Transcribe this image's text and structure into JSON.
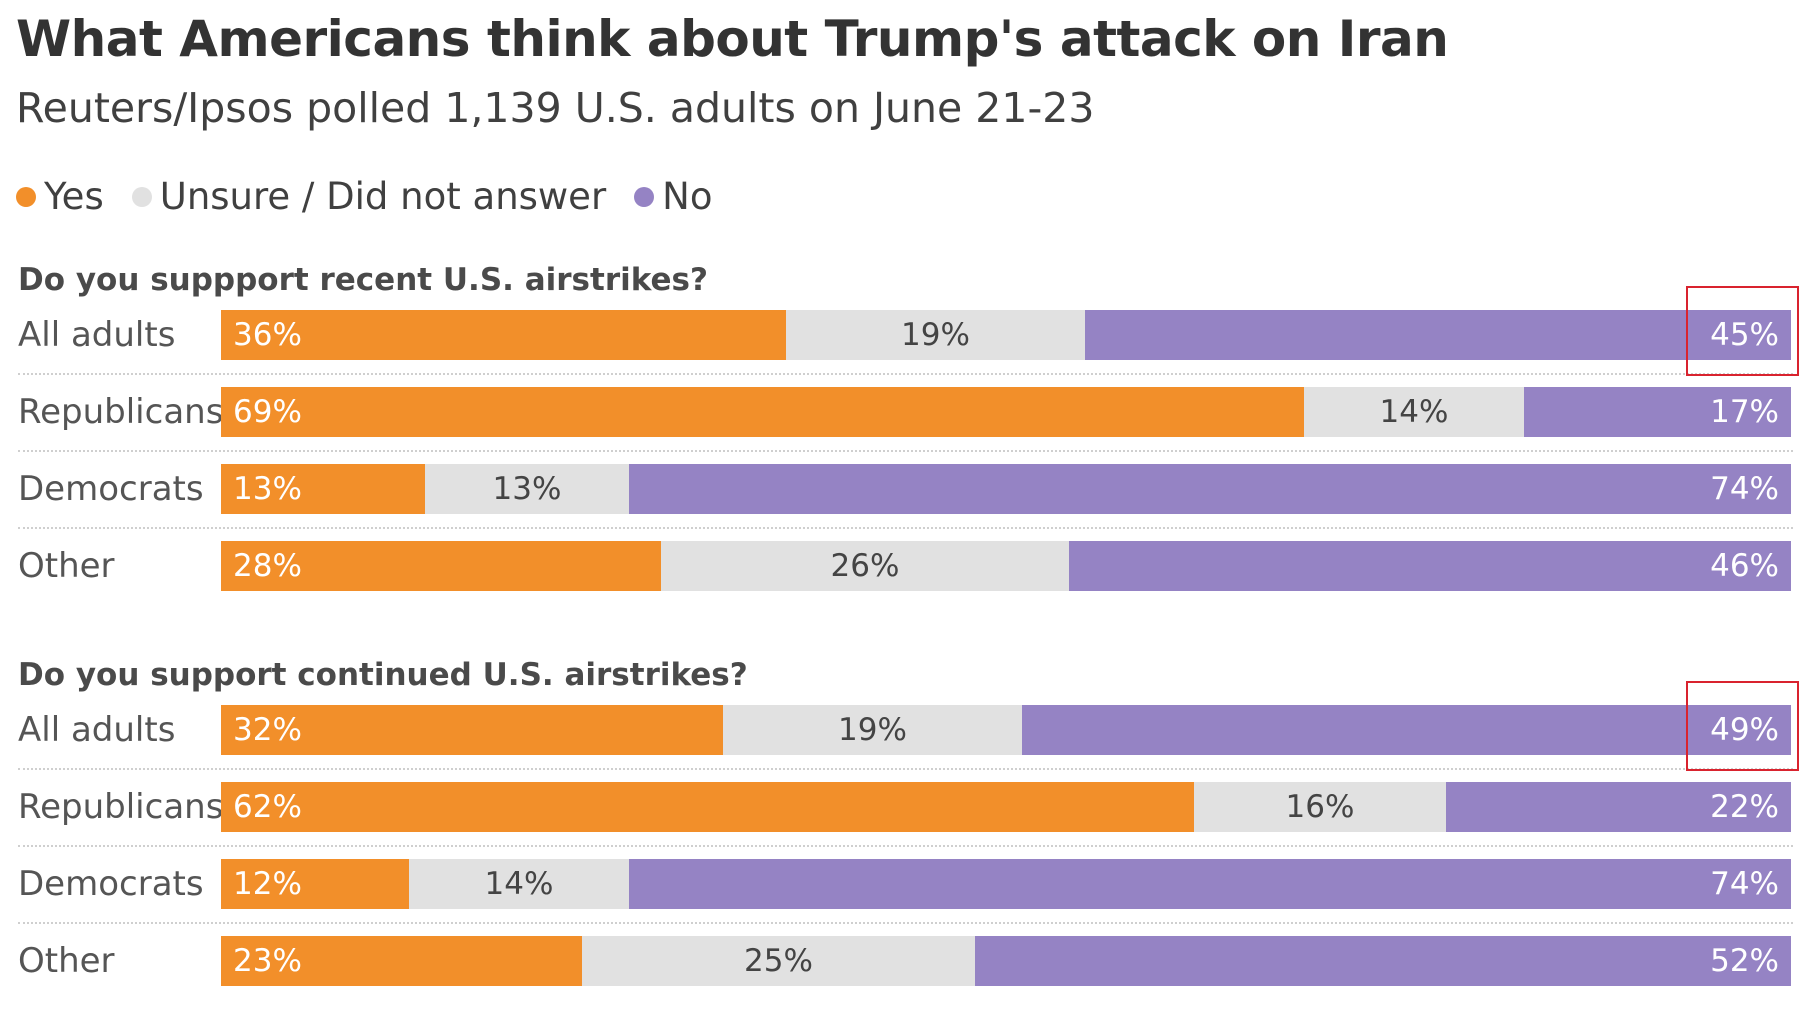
{
  "title": "What Americans think about Trump's attack on Iran",
  "subtitle": "Reuters/Ipsos polled 1,139 U.S. adults on June 21-23",
  "legend": [
    {
      "key": "yes",
      "label": "Yes",
      "color": "#f28f2a"
    },
    {
      "key": "unsure",
      "label": "Unsure / Did not answer",
      "color": "#e1e1e1"
    },
    {
      "key": "no",
      "label": "No",
      "color": "#9583c4"
    }
  ],
  "colors": {
    "yes": "#f28f2a",
    "unsure": "#e1e1e1",
    "no": "#9583c4",
    "highlight": "#d9232e"
  },
  "chart_data": [
    {
      "type": "bar",
      "orientation": "horizontal",
      "stacked": true,
      "title": "Do you suppport recent U.S. airstrikes?",
      "categories": [
        "All adults",
        "Republicans",
        "Democrats",
        "Other"
      ],
      "series": [
        {
          "name": "Yes",
          "values": [
            36,
            69,
            13,
            28
          ],
          "labels": [
            "36%",
            "69%",
            "13%",
            "28%"
          ]
        },
        {
          "name": "Unsure / Did not answer",
          "values": [
            19,
            14,
            13,
            26
          ],
          "labels": [
            "19%",
            "14%",
            "13%",
            "26%"
          ]
        },
        {
          "name": "No",
          "values": [
            45,
            17,
            74,
            46
          ],
          "labels": [
            "45%",
            "17%",
            "74%",
            "46%"
          ]
        }
      ],
      "xlim": [
        0,
        100
      ],
      "highlighted": {
        "series": "No",
        "category": "All adults"
      }
    },
    {
      "type": "bar",
      "orientation": "horizontal",
      "stacked": true,
      "title": "Do you support continued U.S. airstrikes?",
      "categories": [
        "All adults",
        "Republicans",
        "Democrats",
        "Other"
      ],
      "series": [
        {
          "name": "Yes",
          "values": [
            32,
            62,
            12,
            23
          ],
          "labels": [
            "32%",
            "62%",
            "12%",
            "23%"
          ]
        },
        {
          "name": "Unsure / Did not answer",
          "values": [
            19,
            16,
            14,
            25
          ],
          "labels": [
            "19%",
            "16%",
            "14%",
            "25%"
          ]
        },
        {
          "name": "No",
          "values": [
            49,
            22,
            74,
            52
          ],
          "labels": [
            "49%",
            "22%",
            "74%",
            "52%"
          ]
        }
      ],
      "xlim": [
        0,
        100
      ],
      "highlighted": {
        "series": "No",
        "category": "All adults"
      }
    }
  ]
}
